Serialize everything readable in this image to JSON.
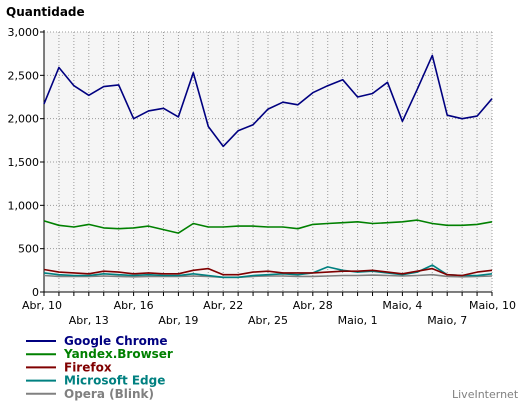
{
  "chart_data": {
    "type": "line",
    "ylabel": "Quantidade",
    "ylim": [
      0,
      3000
    ],
    "yticks": [
      "0",
      "500",
      "1,000",
      "1,500",
      "2,000",
      "2,500",
      "3,000"
    ],
    "x": [
      "Abr, 10",
      "Abr, 11",
      "Abr, 12",
      "Abr, 13",
      "Abr, 14",
      "Abr, 15",
      "Abr, 16",
      "Abr, 17",
      "Abr, 18",
      "Abr, 19",
      "Abr, 20",
      "Abr, 21",
      "Abr, 22",
      "Abr, 23",
      "Abr, 24",
      "Abr, 25",
      "Abr, 26",
      "Abr, 27",
      "Abr, 28",
      "Abr, 29",
      "Abr, 30",
      "Maio, 1",
      "Maio, 2",
      "Maio, 3",
      "Maio, 4",
      "Maio, 5",
      "Maio, 6",
      "Maio, 7",
      "Maio, 8",
      "Maio, 9",
      "Maio, 10"
    ],
    "xticks_row1": [
      "Abr, 10",
      "Abr, 16",
      "Abr, 22",
      "Abr, 28",
      "Maio, 4",
      "Maio, 10"
    ],
    "xticks_row2": [
      "Abr, 13",
      "Abr, 19",
      "Abr, 25",
      "Maio, 1",
      "Maio, 7"
    ],
    "grid": true,
    "legend_position": "bottom-left",
    "credit": "LiveInternet",
    "series": [
      {
        "name": "Google Chrome",
        "color": "#000080",
        "values": [
          2170,
          2590,
          2380,
          2270,
          2370,
          2390,
          2000,
          2090,
          2120,
          2020,
          2530,
          1910,
          1680,
          1860,
          1930,
          2110,
          2190,
          2160,
          2300,
          2380,
          2450,
          2250,
          2290,
          2420,
          1970,
          2340,
          2730,
          2040,
          2000,
          2030,
          2230
        ]
      },
      {
        "name": "Yandex.Browser",
        "color": "#008000",
        "values": [
          820,
          770,
          750,
          780,
          740,
          730,
          740,
          760,
          720,
          680,
          790,
          750,
          750,
          760,
          760,
          750,
          750,
          730,
          780,
          790,
          800,
          810,
          790,
          800,
          810,
          830,
          790,
          770,
          770,
          780,
          810
        ]
      },
      {
        "name": "Firefox",
        "color": "#800000",
        "values": [
          260,
          230,
          220,
          210,
          240,
          230,
          210,
          220,
          210,
          210,
          250,
          270,
          200,
          200,
          230,
          240,
          220,
          220,
          220,
          230,
          240,
          240,
          250,
          230,
          210,
          240,
          270,
          200,
          190,
          230,
          250
        ]
      },
      {
        "name": "Microsoft Edge",
        "color": "#008080",
        "values": [
          220,
          200,
          190,
          190,
          210,
          200,
          190,
          200,
          190,
          190,
          210,
          190,
          170,
          170,
          190,
          200,
          210,
          200,
          220,
          290,
          250,
          230,
          240,
          220,
          200,
          230,
          310,
          200,
          190,
          190,
          210
        ]
      },
      {
        "name": "Opera (Blink)",
        "color": "#808080",
        "values": [
          190,
          180,
          180,
          180,
          185,
          180,
          175,
          180,
          180,
          180,
          185,
          180,
          170,
          170,
          180,
          185,
          185,
          180,
          180,
          185,
          190,
          190,
          195,
          190,
          185,
          190,
          200,
          180,
          175,
          180,
          185
        ]
      }
    ]
  }
}
